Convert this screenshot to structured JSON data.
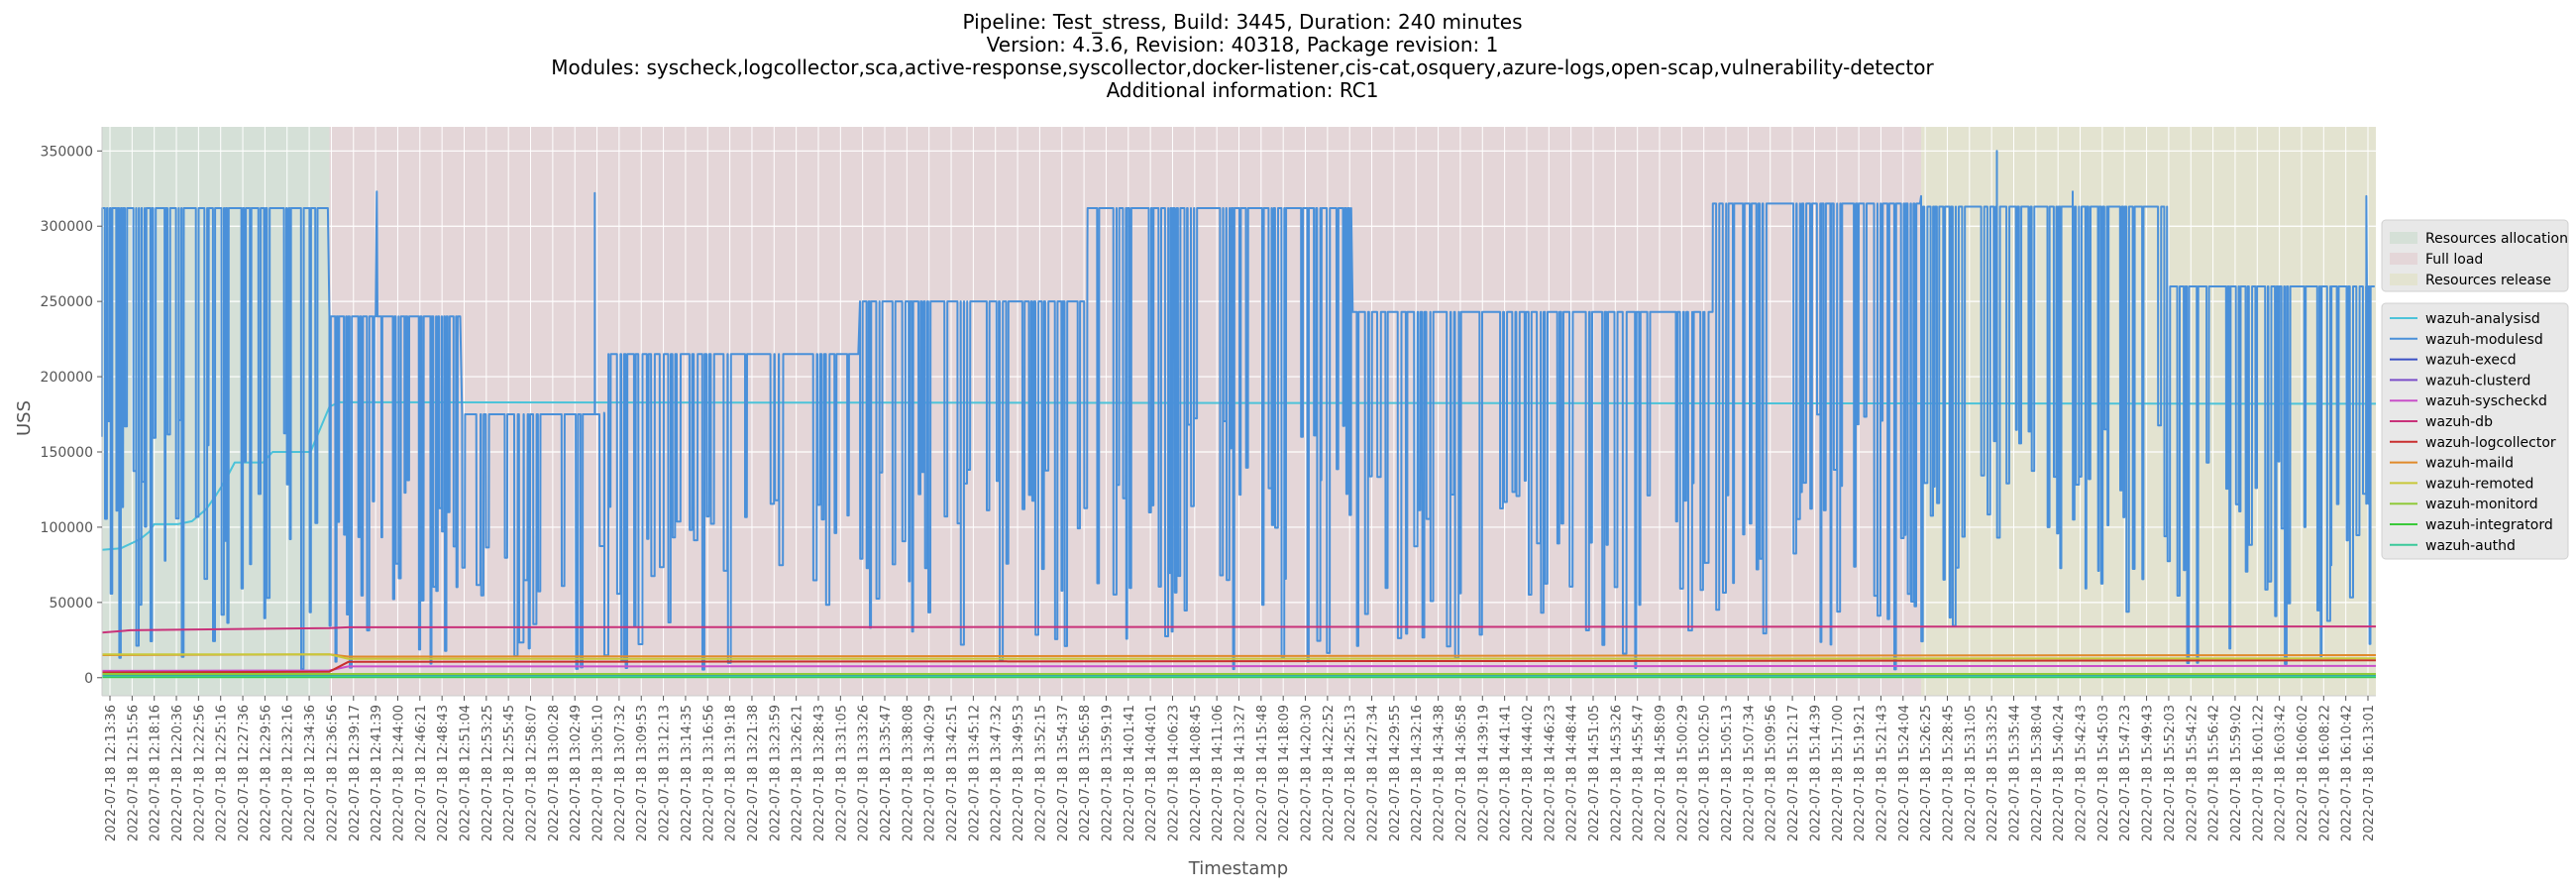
{
  "chart_data": {
    "type": "line",
    "title_lines": [
      "Pipeline: Test_stress, Build: 3445, Duration: 240 minutes",
      "Version: 4.3.6, Revision: 40318, Package revision: 1",
      "Modules: syscheck,logcollector,sca,active-response,syscollector,docker-listener,cis-cat,osquery,azure-logs,open-scap,vulnerability-detector",
      "Additional information: RC1"
    ],
    "xlabel": "Timestamp",
    "ylabel": "USS",
    "ylim": [
      -12000,
      366000
    ],
    "yticks": [
      0,
      50000,
      100000,
      150000,
      200000,
      250000,
      300000,
      350000
    ],
    "x_start": "2022-07-18 12:13:36",
    "x_end": "2022-07-18 16:13:36",
    "x_tick_labels": [
      "2022-07-18 12:13:36",
      "2022-07-18 12:15:56",
      "2022-07-18 12:18:16",
      "2022-07-18 12:20:36",
      "2022-07-18 12:22:56",
      "2022-07-18 12:25:16",
      "2022-07-18 12:27:36",
      "2022-07-18 12:29:56",
      "2022-07-18 12:32:16",
      "2022-07-18 12:34:36",
      "2022-07-18 12:36:56",
      "2022-07-18 12:39:17",
      "2022-07-18 12:41:39",
      "2022-07-18 12:44:00",
      "2022-07-18 12:46:21",
      "2022-07-18 12:48:43",
      "2022-07-18 12:51:04",
      "2022-07-18 12:53:25",
      "2022-07-18 12:55:45",
      "2022-07-18 12:58:07",
      "2022-07-18 13:00:28",
      "2022-07-18 13:02:49",
      "2022-07-18 13:05:10",
      "2022-07-18 13:07:32",
      "2022-07-18 13:09:53",
      "2022-07-18 13:12:13",
      "2022-07-18 13:14:35",
      "2022-07-18 13:16:56",
      "2022-07-18 13:19:18",
      "2022-07-18 13:21:38",
      "2022-07-18 13:23:59",
      "2022-07-18 13:26:21",
      "2022-07-18 13:28:43",
      "2022-07-18 13:31:05",
      "2022-07-18 13:33:26",
      "2022-07-18 13:35:47",
      "2022-07-18 13:38:08",
      "2022-07-18 13:40:29",
      "2022-07-18 13:42:51",
      "2022-07-18 13:45:12",
      "2022-07-18 13:47:32",
      "2022-07-18 13:49:53",
      "2022-07-18 13:52:15",
      "2022-07-18 13:54:37",
      "2022-07-18 13:56:58",
      "2022-07-18 13:59:19",
      "2022-07-18 14:01:41",
      "2022-07-18 14:04:01",
      "2022-07-18 14:06:23",
      "2022-07-18 14:08:45",
      "2022-07-18 14:11:06",
      "2022-07-18 14:13:27",
      "2022-07-18 14:15:48",
      "2022-07-18 14:18:09",
      "2022-07-18 14:20:30",
      "2022-07-18 14:22:52",
      "2022-07-18 14:25:13",
      "2022-07-18 14:27:34",
      "2022-07-18 14:29:55",
      "2022-07-18 14:32:16",
      "2022-07-18 14:34:38",
      "2022-07-18 14:36:58",
      "2022-07-18 14:39:19",
      "2022-07-18 14:41:41",
      "2022-07-18 14:44:02",
      "2022-07-18 14:46:23",
      "2022-07-18 14:48:44",
      "2022-07-18 14:51:05",
      "2022-07-18 14:53:26",
      "2022-07-18 14:55:47",
      "2022-07-18 14:58:09",
      "2022-07-18 15:00:29",
      "2022-07-18 15:02:50",
      "2022-07-18 15:05:13",
      "2022-07-18 15:07:34",
      "2022-07-18 15:09:56",
      "2022-07-18 15:12:17",
      "2022-07-18 15:14:39",
      "2022-07-18 15:17:00",
      "2022-07-18 15:19:21",
      "2022-07-18 15:21:43",
      "2022-07-18 15:24:04",
      "2022-07-18 15:26:25",
      "2022-07-18 15:28:45",
      "2022-07-18 15:31:05",
      "2022-07-18 15:33:25",
      "2022-07-18 15:35:44",
      "2022-07-18 15:38:04",
      "2022-07-18 15:40:24",
      "2022-07-18 15:42:43",
      "2022-07-18 15:45:03",
      "2022-07-18 15:47:23",
      "2022-07-18 15:49:43",
      "2022-07-18 15:52:03",
      "2022-07-18 15:54:22",
      "2022-07-18 15:56:42",
      "2022-07-18 15:59:02",
      "2022-07-18 16:01:22",
      "2022-07-18 16:03:42",
      "2022-07-18 16:06:02",
      "2022-07-18 16:08:22",
      "2022-07-18 16:10:42",
      "2022-07-18 16:13:01"
    ],
    "phases": [
      {
        "name": "Resources allocation",
        "start_min": 0,
        "end_min": 24,
        "color": "#d5e0d7"
      },
      {
        "name": "Full load",
        "start_min": 24,
        "end_min": 192,
        "color": "#e4d6d8"
      },
      {
        "name": "Resources release",
        "start_min": 192,
        "end_min": 240,
        "color": "#e3e3d0"
      }
    ],
    "series": [
      {
        "name": "wazuh-analysisd",
        "color": "#4cc3d9",
        "points": [
          [
            0,
            85000
          ],
          [
            2,
            86000
          ],
          [
            4,
            92000
          ],
          [
            5,
            97000
          ],
          [
            5.5,
            102000
          ],
          [
            8,
            102000
          ],
          [
            9.5,
            104000
          ],
          [
            11,
            112000
          ],
          [
            12,
            121000
          ],
          [
            13,
            131000
          ],
          [
            14,
            143000
          ],
          [
            17,
            143000
          ],
          [
            18,
            150000
          ],
          [
            22,
            150000
          ],
          [
            23,
            165000
          ],
          [
            24,
            180000
          ],
          [
            25,
            183000
          ],
          [
            240,
            182000
          ]
        ]
      },
      {
        "name": "wazuh-modulesd",
        "color": "#4a90d9",
        "segments": [
          {
            "from_min": 0,
            "to_min": 24,
            "low": 5000,
            "high": 312000,
            "start": 160000,
            "transitions": 80
          },
          {
            "from_min": 24,
            "to_min": 38,
            "low": 5000,
            "high": 240000,
            "start": 240000,
            "transitions": 46
          },
          {
            "from_min": 38,
            "to_min": 53,
            "low": 5000,
            "high": 175000,
            "start": 175000,
            "transitions": 30
          },
          {
            "from_min": 53,
            "to_min": 80,
            "low": 5000,
            "high": 215000,
            "start": 176000,
            "transitions": 60
          },
          {
            "from_min": 80,
            "to_min": 104,
            "low": 5000,
            "high": 250000,
            "start": 250000,
            "transitions": 70
          },
          {
            "from_min": 104,
            "to_min": 132,
            "low": 5000,
            "high": 312000,
            "start": 285000,
            "transitions": 82
          },
          {
            "from_min": 132,
            "to_min": 170,
            "low": 5000,
            "high": 243000,
            "start": 243000,
            "transitions": 88
          },
          {
            "from_min": 170,
            "to_min": 192,
            "low": 5000,
            "high": 315000,
            "start": 243000,
            "transitions": 62
          },
          {
            "from_min": 192,
            "to_min": 218,
            "low": 5000,
            "high": 313000,
            "start": 320000,
            "transitions": 78
          },
          {
            "from_min": 218,
            "to_min": 240,
            "low": 5000,
            "high": 260000,
            "start": 180000,
            "transitions": 64
          }
        ],
        "peaks": [
          [
            29,
            323000
          ],
          [
            52,
            322000
          ],
          [
            200,
            350000
          ],
          [
            208,
            323000
          ],
          [
            239,
            320000
          ]
        ]
      },
      {
        "name": "wazuh-execd",
        "color": "#3b50c4",
        "points": [
          [
            0,
            1500
          ],
          [
            240,
            1500
          ]
        ]
      },
      {
        "name": "wazuh-clusterd",
        "color": "#7b4fc9",
        "points": [
          [
            0,
            700
          ],
          [
            240,
            700
          ]
        ]
      },
      {
        "name": "wazuh-syscheckd",
        "color": "#c94fc9",
        "points": [
          [
            0,
            4500
          ],
          [
            24,
            4800
          ],
          [
            26,
            7500
          ],
          [
            240,
            7800
          ]
        ]
      },
      {
        "name": "wazuh-db",
        "color": "#c9327a",
        "points": [
          [
            0,
            30000
          ],
          [
            3,
            31500
          ],
          [
            24,
            33000
          ],
          [
            26,
            33500
          ],
          [
            240,
            34000
          ]
        ]
      },
      {
        "name": "wazuh-logcollector",
        "color": "#c92f2f",
        "points": [
          [
            0,
            3500
          ],
          [
            24,
            4000
          ],
          [
            26,
            10500
          ],
          [
            240,
            11500
          ]
        ]
      },
      {
        "name": "wazuh-maild",
        "color": "#e08a2b",
        "points": [
          [
            0,
            15000
          ],
          [
            24,
            15500
          ],
          [
            26,
            14000
          ],
          [
            240,
            15000
          ]
        ]
      },
      {
        "name": "wazuh-remoted",
        "color": "#c8c83a",
        "points": [
          [
            0,
            15500
          ],
          [
            24,
            15500
          ],
          [
            26,
            12500
          ],
          [
            240,
            12800
          ]
        ]
      },
      {
        "name": "wazuh-monitord",
        "color": "#8fc93a",
        "points": [
          [
            0,
            2500
          ],
          [
            240,
            2500
          ]
        ]
      },
      {
        "name": "wazuh-integratord",
        "color": "#3ac93a",
        "points": [
          [
            0,
            300
          ],
          [
            240,
            300
          ]
        ]
      },
      {
        "name": "wazuh-authd",
        "color": "#3ac99a",
        "points": [
          [
            0,
            1000
          ],
          [
            240,
            1000
          ]
        ]
      }
    ]
  }
}
